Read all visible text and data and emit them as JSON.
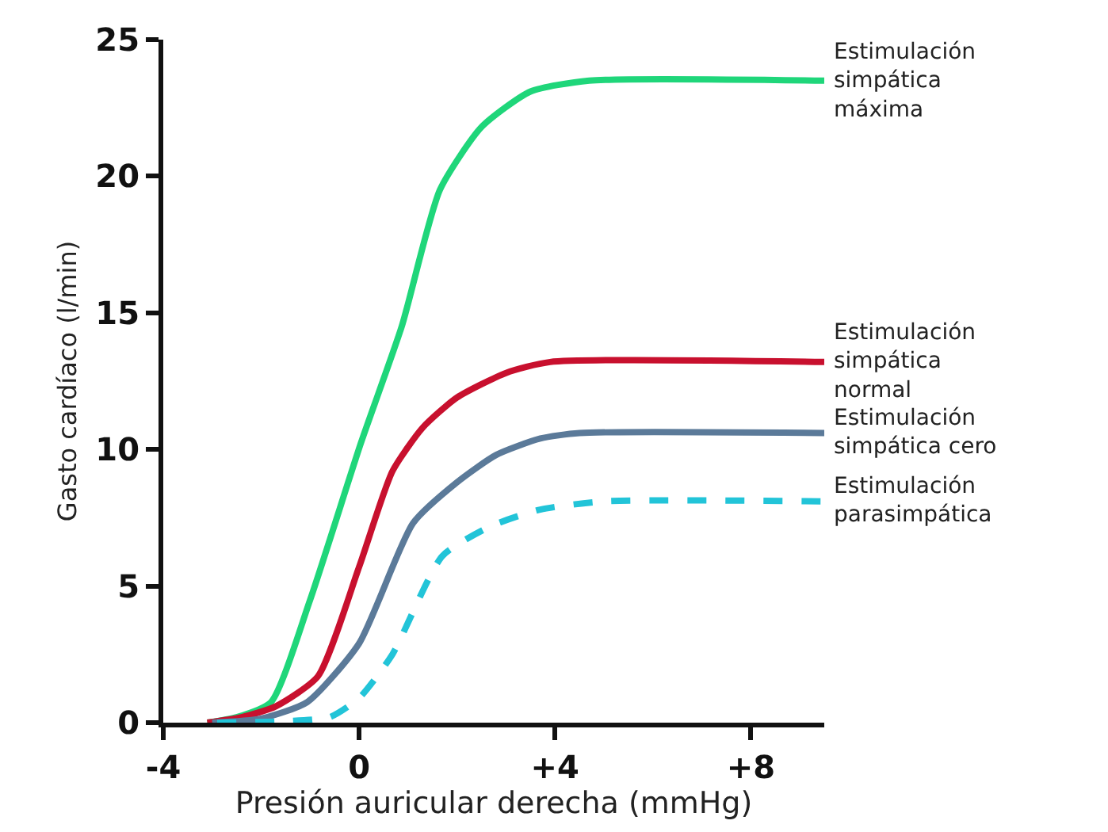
{
  "chart_data": {
    "type": "line",
    "xlabel": "Presión auricular derecha (mmHg)",
    "ylabel": "Gasto cardíaco (l/min)",
    "xlim": [
      -4,
      9.5
    ],
    "xticks": [
      -4,
      0,
      {
        "value": 4,
        "label": "+4"
      },
      {
        "value": 8,
        "label": "+8"
      }
    ],
    "ylim": [
      0,
      25
    ],
    "yticks": [
      0,
      5,
      10,
      15,
      20,
      25
    ],
    "legend": false,
    "marker": "none",
    "series": [
      {
        "name": "Estimulación\nsimpática\nmáxima",
        "color": "#1fd67a",
        "line_style": "solid",
        "x": [
          -3.1,
          -2.5,
          -1.8,
          -1.0,
          0.03,
          0.87,
          1.65,
          2.5,
          3.5,
          4.7,
          9.5
        ],
        "values": [
          0,
          0.2,
          0.75,
          4.5,
          10.2,
          14.5,
          19.5,
          21.8,
          23.1,
          23.5,
          23.5
        ]
      },
      {
        "name": "Estimulación\nsimpática\nnormal",
        "color": "#c8102e",
        "line_style": "solid",
        "x": [
          -3.1,
          -2.4,
          -1.7,
          -0.84,
          0,
          0.68,
          1.3,
          2.0,
          3.0,
          3.9,
          9.5
        ],
        "values": [
          0,
          0.2,
          0.6,
          1.7,
          5.7,
          9.2,
          10.8,
          11.9,
          12.8,
          13.2,
          13.2
        ]
      },
      {
        "name": "Estimulación\nsimpática cero",
        "color": "#5b7a99",
        "line_style": "solid",
        "x": [
          -3.0,
          -2.0,
          -1.06,
          0,
          1.1,
          2.0,
          2.8,
          3.7,
          4.5,
          9.5
        ],
        "values": [
          0,
          0.15,
          0.75,
          2.9,
          7.3,
          8.8,
          9.8,
          10.4,
          10.6,
          10.6
        ]
      },
      {
        "name": "Estimulación\nparasimpática",
        "color": "#22c4d8",
        "line_style": "dashed",
        "x": [
          -2.9,
          -1.5,
          -0.6,
          0,
          0.68,
          1.7,
          2.7,
          3.7,
          5.0,
          9.5
        ],
        "values": [
          0,
          0.05,
          0.2,
          0.9,
          2.5,
          6.1,
          7.2,
          7.8,
          8.1,
          8.1
        ]
      }
    ]
  }
}
